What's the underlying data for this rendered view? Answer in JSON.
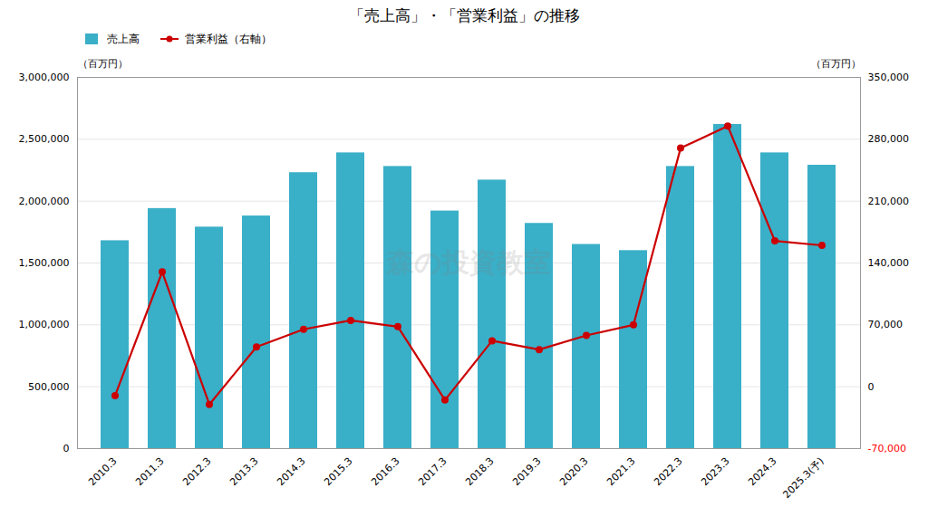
{
  "chart_data": {
    "type": "bar",
    "title": "「売上高」・「営業利益」の推移",
    "ylabel": "（百万円）",
    "y2label": "（百万円）",
    "categories": [
      "2010.3",
      "2011.3",
      "2012.3",
      "2013.3",
      "2014.3",
      "2015.3",
      "2016.3",
      "2017.3",
      "2018.3",
      "2019.3",
      "2020.3",
      "2021.3",
      "2022.3",
      "2023.3",
      "2024.3",
      "2025.3(予)"
    ],
    "series": [
      {
        "name": "売上高",
        "type": "bar",
        "color": "#3aafc8",
        "values": [
          1680000,
          1940000,
          1790000,
          1880000,
          2230000,
          2390000,
          2280000,
          1920000,
          2170000,
          1820000,
          1650000,
          1600000,
          2280000,
          2620000,
          2390000,
          2290000
        ]
      },
      {
        "name": "営業利益（右軸）",
        "type": "line",
        "color": "#cc0000",
        "marker": "circle",
        "axis": "y2",
        "values": [
          -10000,
          130000,
          -20000,
          45000,
          65000,
          75000,
          68000,
          -15000,
          52000,
          42000,
          58000,
          70000,
          270000,
          295000,
          165000,
          160000
        ]
      }
    ],
    "ylim": [
      0,
      3000000
    ],
    "yticks": [
      0,
      {
        "value": 500000,
        "label": "500,000"
      },
      {
        "value": 1000000,
        "label": "1,000,000"
      },
      {
        "value": 1500000,
        "label": "1,500,000"
      },
      {
        "value": 2000000,
        "label": "2,000,000"
      },
      {
        "value": 2500000,
        "label": "2,500,000"
      },
      {
        "value": 3000000,
        "label": "3,000,000"
      }
    ],
    "y2lim": [
      -70000,
      350000
    ],
    "y2ticks": [
      {
        "value": -70000,
        "label": "-70,000"
      },
      0,
      {
        "value": 70000,
        "label": "70,000"
      },
      {
        "value": 140000,
        "label": "140,000"
      },
      {
        "value": 210000,
        "label": "210,000"
      },
      {
        "value": 280000,
        "label": "280,000"
      },
      {
        "value": 350000,
        "label": "350,000"
      }
    ],
    "grid": true,
    "legend": "upper left",
    "annotations": [
      "森の投資教室"
    ]
  }
}
